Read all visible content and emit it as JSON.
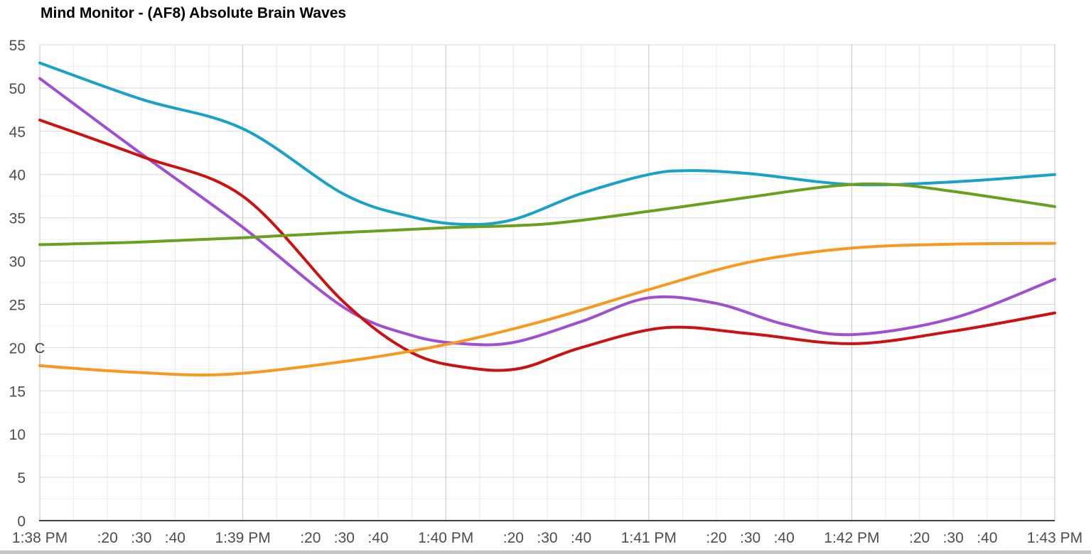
{
  "title": "Mind Monitor - (AF8) Absolute Brain Waves",
  "colors": {
    "background": "#ffffff",
    "title_text": "#000000",
    "axis_text": "#4d4d4d",
    "grid_minor_h": "#efefef",
    "grid_major_h": "#d9d9d9",
    "grid_minor_v": "#e8e8e8",
    "grid_major_v": "#c3c3c3",
    "baseline": "#424242",
    "annotation_text": "#3c3c3c",
    "annotation_stem": "#999999",
    "scrollbar": "#c6c6c6"
  },
  "chart_data": {
    "type": "line",
    "title": "Mind Monitor - (AF8) Absolute Brain Waves",
    "curve": "smooth",
    "legend_position": "none",
    "grid": true,
    "x_unit": "seconds after 1:38 PM",
    "x_range": [
      0,
      300
    ],
    "x_minor_grid_step": 10,
    "x_major_grid_step": 60,
    "ylim": [
      0,
      55
    ],
    "y_minor_step": 2.5,
    "y_major_step": 5,
    "y_ticks": [
      0,
      5,
      10,
      15,
      20,
      25,
      30,
      35,
      40,
      45,
      50,
      55
    ],
    "x_ticks": [
      {
        "t": 0,
        "label": "1:38 PM"
      },
      {
        "t": 20,
        "label": ":20"
      },
      {
        "t": 30,
        "label": ":30"
      },
      {
        "t": 40,
        "label": ":40"
      },
      {
        "t": 60,
        "label": "1:39 PM"
      },
      {
        "t": 80,
        "label": ":20"
      },
      {
        "t": 90,
        "label": ":30"
      },
      {
        "t": 100,
        "label": ":40"
      },
      {
        "t": 120,
        "label": "1:40 PM"
      },
      {
        "t": 140,
        "label": ":20"
      },
      {
        "t": 150,
        "label": ":30"
      },
      {
        "t": 160,
        "label": ":40"
      },
      {
        "t": 180,
        "label": "1:41 PM"
      },
      {
        "t": 200,
        "label": ":20"
      },
      {
        "t": 210,
        "label": ":30"
      },
      {
        "t": 220,
        "label": ":40"
      },
      {
        "t": 240,
        "label": "1:42 PM"
      },
      {
        "t": 260,
        "label": ":20"
      },
      {
        "t": 270,
        "label": ":30"
      },
      {
        "t": 280,
        "label": ":40"
      },
      {
        "t": 300,
        "label": "1:43 PM"
      }
    ],
    "annotation": {
      "label": "C",
      "t": 0,
      "attached_value": 17.9
    },
    "series": [
      {
        "name": "series-cyan",
        "color": "#19a2c8",
        "points": [
          [
            0,
            52.9
          ],
          [
            30,
            48.7
          ],
          [
            60,
            45.3
          ],
          [
            90,
            37.7
          ],
          [
            110,
            35.1
          ],
          [
            125,
            34.25
          ],
          [
            140,
            34.8
          ],
          [
            160,
            37.8
          ],
          [
            180,
            40.0
          ],
          [
            192,
            40.45
          ],
          [
            210,
            40.1
          ],
          [
            240,
            38.85
          ],
          [
            270,
            39.15
          ],
          [
            300,
            40.0
          ]
        ]
      },
      {
        "name": "series-purple",
        "color": "#a14fd2",
        "points": [
          [
            0,
            51.1
          ],
          [
            30,
            42.4
          ],
          [
            60,
            33.9
          ],
          [
            90,
            24.6
          ],
          [
            110,
            21.4
          ],
          [
            125,
            20.45
          ],
          [
            140,
            20.6
          ],
          [
            160,
            23.0
          ],
          [
            180,
            25.75
          ],
          [
            200,
            25.1
          ],
          [
            220,
            22.7
          ],
          [
            240,
            21.5
          ],
          [
            270,
            23.4
          ],
          [
            300,
            27.9
          ]
        ]
      },
      {
        "name": "series-red",
        "color": "#cc1111",
        "points": [
          [
            0,
            46.3
          ],
          [
            30,
            42.1
          ],
          [
            60,
            37.5
          ],
          [
            90,
            25.2
          ],
          [
            110,
            19.4
          ],
          [
            127,
            17.65
          ],
          [
            142,
            17.6
          ],
          [
            160,
            20.0
          ],
          [
            185,
            22.3
          ],
          [
            210,
            21.6
          ],
          [
            240,
            20.45
          ],
          [
            270,
            21.9
          ],
          [
            300,
            24.0
          ]
        ]
      },
      {
        "name": "series-green",
        "color": "#6ba01f",
        "points": [
          [
            0,
            31.9
          ],
          [
            30,
            32.2
          ],
          [
            60,
            32.7
          ],
          [
            90,
            33.3
          ],
          [
            120,
            33.85
          ],
          [
            150,
            34.3
          ],
          [
            180,
            35.75
          ],
          [
            210,
            37.4
          ],
          [
            235,
            38.7
          ],
          [
            252,
            38.85
          ],
          [
            270,
            38.05
          ],
          [
            300,
            36.3
          ]
        ]
      },
      {
        "name": "series-orange",
        "color": "#f8981c",
        "points": [
          [
            0,
            17.9
          ],
          [
            28,
            17.15
          ],
          [
            55,
            16.9
          ],
          [
            90,
            18.4
          ],
          [
            120,
            20.35
          ],
          [
            150,
            23.2
          ],
          [
            180,
            26.7
          ],
          [
            210,
            29.9
          ],
          [
            240,
            31.5
          ],
          [
            270,
            31.95
          ],
          [
            300,
            32.05
          ]
        ]
      }
    ]
  }
}
